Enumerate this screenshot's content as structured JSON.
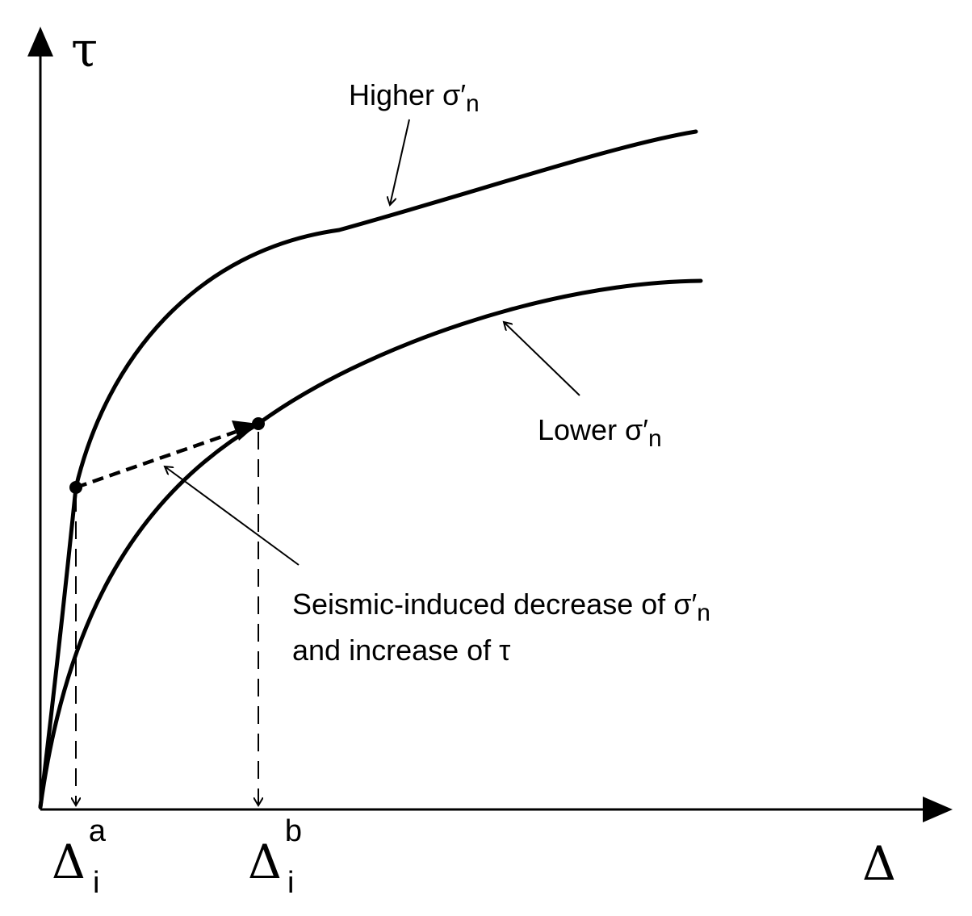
{
  "axes": {
    "y_label": "τ",
    "x_label": "Δ"
  },
  "curves": {
    "higher": {
      "label_prefix": "Higher σ′",
      "label_sub": "n"
    },
    "lower": {
      "label_prefix": "Lower σ′",
      "label_sub": "n"
    }
  },
  "annotation": {
    "line1_prefix": "Seismic-induced decrease of σ′",
    "line1_sub": "n",
    "line2": "and increase of τ"
  },
  "ticks": {
    "a": {
      "base": "Δ",
      "sup": "a",
      "sub": "i"
    },
    "b": {
      "base": "Δ",
      "sup": "b",
      "sub": "i"
    }
  },
  "colors": {
    "ink": "#000000",
    "background": "#ffffff"
  }
}
